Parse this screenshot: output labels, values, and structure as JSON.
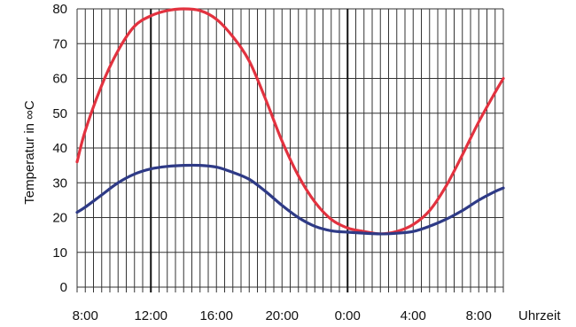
{
  "chart_data": {
    "type": "line",
    "xlabel": "Uhrzeit",
    "ylabel": "Temperatur in ∞C",
    "ylim": [
      0,
      80
    ],
    "xlim_hours": [
      7.5,
      33.5
    ],
    "x_ticks": [
      {
        "hour": 8,
        "label": "8:00"
      },
      {
        "hour": 12,
        "label": "12:00"
      },
      {
        "hour": 16,
        "label": "16:00"
      },
      {
        "hour": 20,
        "label": "20:00"
      },
      {
        "hour": 24,
        "label": "0:00"
      },
      {
        "hour": 28,
        "label": "4:00"
      },
      {
        "hour": 32,
        "label": "8:00"
      }
    ],
    "y_ticks": [
      0,
      10,
      20,
      30,
      40,
      50,
      60,
      70,
      80
    ],
    "grid": true,
    "major_vertical_lines_hours": [
      12,
      24
    ],
    "series": [
      {
        "color": "#e2323f",
        "points": [
          {
            "x": 7.5,
            "y": 36
          },
          {
            "x": 8,
            "y": 45
          },
          {
            "x": 9,
            "y": 58
          },
          {
            "x": 10,
            "y": 68
          },
          {
            "x": 11,
            "y": 75
          },
          {
            "x": 12,
            "y": 78
          },
          {
            "x": 13,
            "y": 79.5
          },
          {
            "x": 14,
            "y": 80
          },
          {
            "x": 15,
            "y": 79.5
          },
          {
            "x": 16,
            "y": 77
          },
          {
            "x": 17,
            "y": 72
          },
          {
            "x": 18,
            "y": 65
          },
          {
            "x": 19,
            "y": 54
          },
          {
            "x": 20,
            "y": 42
          },
          {
            "x": 21,
            "y": 32
          },
          {
            "x": 22,
            "y": 24.5
          },
          {
            "x": 23,
            "y": 19.5
          },
          {
            "x": 24,
            "y": 17
          },
          {
            "x": 25,
            "y": 16
          },
          {
            "x": 26,
            "y": 15.3
          },
          {
            "x": 27,
            "y": 16
          },
          {
            "x": 28,
            "y": 18
          },
          {
            "x": 29,
            "y": 22
          },
          {
            "x": 30,
            "y": 29
          },
          {
            "x": 31,
            "y": 38
          },
          {
            "x": 32,
            "y": 47.5
          },
          {
            "x": 33,
            "y": 56
          },
          {
            "x": 33.5,
            "y": 60
          }
        ]
      },
      {
        "color": "#2e3a86",
        "points": [
          {
            "x": 7.5,
            "y": 21.5
          },
          {
            "x": 8,
            "y": 23
          },
          {
            "x": 9,
            "y": 26.5
          },
          {
            "x": 10,
            "y": 30
          },
          {
            "x": 11,
            "y": 32.5
          },
          {
            "x": 12,
            "y": 34
          },
          {
            "x": 13,
            "y": 34.7
          },
          {
            "x": 14,
            "y": 35
          },
          {
            "x": 15,
            "y": 35
          },
          {
            "x": 16,
            "y": 34.5
          },
          {
            "x": 17,
            "y": 33
          },
          {
            "x": 18,
            "y": 31
          },
          {
            "x": 19,
            "y": 27.5
          },
          {
            "x": 20,
            "y": 23.5
          },
          {
            "x": 21,
            "y": 20
          },
          {
            "x": 22,
            "y": 17.5
          },
          {
            "x": 23,
            "y": 16.2
          },
          {
            "x": 24,
            "y": 15.8
          },
          {
            "x": 25,
            "y": 15.5
          },
          {
            "x": 26,
            "y": 15.3
          },
          {
            "x": 27,
            "y": 15.5
          },
          {
            "x": 28,
            "y": 16
          },
          {
            "x": 29,
            "y": 17.5
          },
          {
            "x": 30,
            "y": 19.5
          },
          {
            "x": 31,
            "y": 22
          },
          {
            "x": 32,
            "y": 25
          },
          {
            "x": 33,
            "y": 27.5
          },
          {
            "x": 33.5,
            "y": 28.5
          }
        ]
      }
    ]
  }
}
